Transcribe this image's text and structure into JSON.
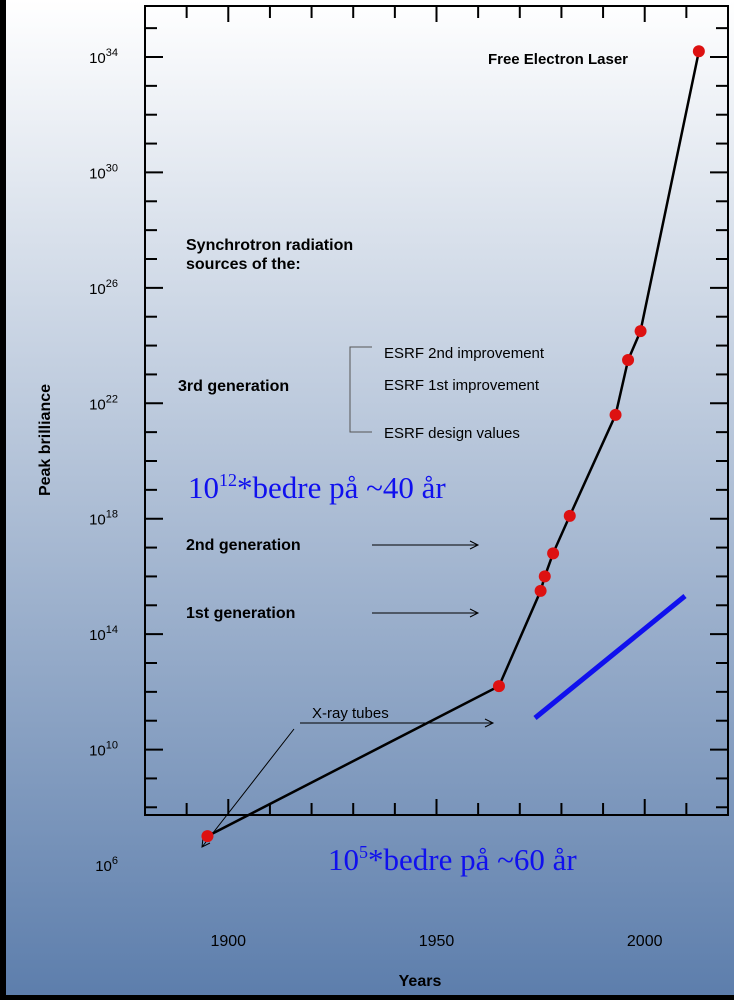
{
  "chart_data": {
    "type": "line",
    "xlabel": "Years",
    "ylabel": "Peak brilliance",
    "xlim": [
      1880,
      2020
    ],
    "x_ticks": [
      {
        "value": 1900,
        "label": "1900"
      },
      {
        "value": 1950,
        "label": "1950"
      },
      {
        "value": 2000,
        "label": "2000"
      }
    ],
    "y_scale": "log",
    "ylim_exponent": [
      6,
      35
    ],
    "y_ticks": [
      {
        "exponent": 6,
        "base": "10",
        "exp": "6"
      },
      {
        "exponent": 10,
        "base": "10",
        "exp": "10"
      },
      {
        "exponent": 14,
        "base": "10",
        "exp": "14"
      },
      {
        "exponent": 18,
        "base": "10",
        "exp": "18"
      },
      {
        "exponent": 22,
        "base": "10",
        "exp": "22"
      },
      {
        "exponent": 26,
        "base": "10",
        "exp": "26"
      },
      {
        "exponent": 30,
        "base": "10",
        "exp": "30"
      },
      {
        "exponent": 34,
        "base": "10",
        "exp": "34"
      }
    ],
    "series": [
      {
        "color": "#dd1111",
        "points": [
          {
            "year": 1895,
            "exponent": 7.0
          },
          {
            "year": 1965,
            "exponent": 12.2
          },
          {
            "year": 1975,
            "exponent": 15.5
          },
          {
            "year": 1976,
            "exponent": 16.0
          },
          {
            "year": 1978,
            "exponent": 16.8
          },
          {
            "year": 1982,
            "exponent": 18.1
          },
          {
            "year": 1993,
            "exponent": 21.6
          },
          {
            "year": 1996,
            "exponent": 23.5
          },
          {
            "year": 1999,
            "exponent": 24.5
          },
          {
            "year": 2013,
            "exponent": 34.2
          }
        ]
      }
    ],
    "annotations": {
      "free_electron_laser": "Free Electron Laser",
      "sr_title_line1": "Synchrotron radiation",
      "sr_title_line2": "sources of the:",
      "third_generation": "3rd generation",
      "esrf_2nd": "ESRF 2nd improvement",
      "esrf_1st": "ESRF 1st improvement",
      "esrf_design": "ESRF design values",
      "second_generation": "2nd generation",
      "first_generation": "1st generation",
      "xray_tubes": "X-ray tubes"
    },
    "overlay_notes": {
      "note_top": {
        "base": "10",
        "exp": "12",
        "rest": "*bedre på ~40 år"
      },
      "note_bottom": {
        "base": "10",
        "exp": "5",
        "rest": "*bedre på ~60 år"
      },
      "color": "#1010ee"
    },
    "colors": {
      "background_top": "#ffffff",
      "background_bottom": "#5d7eac",
      "line": "#000000",
      "marker": "#dd1111",
      "overlay": "#1010ee"
    }
  }
}
